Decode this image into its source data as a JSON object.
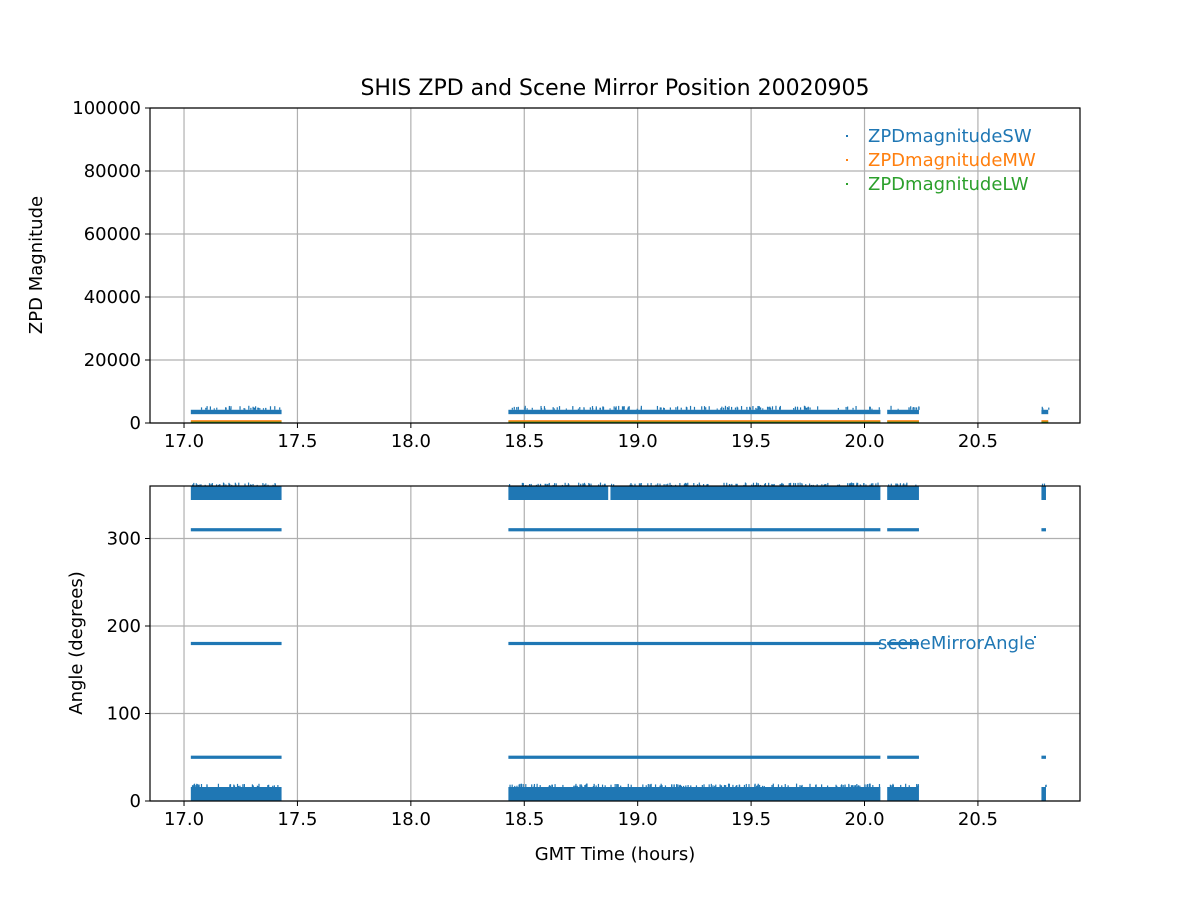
{
  "figure": {
    "title": "SHIS ZPD and Scene Mirror Position 20020905",
    "xlabel": "GMT Time (hours)"
  },
  "colors": {
    "sw": "#1f77b4",
    "mw": "#ff7f0e",
    "lw": "#2ca02c",
    "grid": "#b0b0b0",
    "axes": "#000000"
  },
  "chart_data": [
    {
      "type": "scatter",
      "ylabel": "ZPD Magnitude",
      "xlim": [
        16.85,
        20.95
      ],
      "ylim": [
        0,
        100000
      ],
      "xticks": [
        17.0,
        17.5,
        18.0,
        18.5,
        19.0,
        19.5,
        20.0,
        20.5
      ],
      "xtick_labels": [
        "17.0",
        "17.5",
        "18.0",
        "18.5",
        "19.0",
        "19.5",
        "20.0",
        "20.5"
      ],
      "yticks": [
        0,
        20000,
        40000,
        60000,
        80000,
        100000
      ],
      "ytick_labels": [
        "0",
        "20000",
        "40000",
        "60000",
        "80000",
        "100000"
      ],
      "grid": true,
      "legend_position": "top-right",
      "segments": [
        {
          "x": [
            17.03,
            17.43
          ]
        },
        {
          "x": [
            18.43,
            20.07
          ]
        },
        {
          "x": [
            20.1,
            20.24
          ]
        },
        {
          "x": [
            20.78,
            20.81
          ]
        }
      ],
      "series": [
        {
          "name": "ZPDmagnitudeSW",
          "color": "sw",
          "y_band": [
            2800,
            4200
          ],
          "typical": 3500
        },
        {
          "name": "ZPDmagnitudeMW",
          "color": "mw",
          "y_band": [
            500,
            900
          ],
          "typical": 700
        },
        {
          "name": "ZPDmagnitudeLW",
          "color": "lw",
          "y_band": [
            100,
            600
          ],
          "typical": 350
        }
      ]
    },
    {
      "type": "scatter",
      "ylabel": "Angle (degrees)",
      "xlim": [
        16.85,
        20.95
      ],
      "ylim": [
        0,
        360
      ],
      "xticks": [
        17.0,
        17.5,
        18.0,
        18.5,
        19.0,
        19.5,
        20.0,
        20.5
      ],
      "xtick_labels": [
        "17.0",
        "17.5",
        "18.0",
        "18.5",
        "19.0",
        "19.5",
        "20.0",
        "20.5"
      ],
      "yticks": [
        0,
        100,
        200,
        300
      ],
      "ytick_labels": [
        "0",
        "100",
        "200",
        "300"
      ],
      "grid": true,
      "legend_position": "right",
      "series": [
        {
          "name": "sceneMirrorAngle",
          "color": "sw",
          "levels": [
            {
              "y": [
                344,
                360
              ],
              "segments": [
                [
                  17.03,
                  17.43
                ],
                [
                  18.43,
                  18.87
                ],
                [
                  18.88,
                  20.07
                ],
                [
                  20.1,
                  20.24
                ],
                [
                  20.78,
                  20.8
                ]
              ]
            },
            {
              "y": [
                310,
                310
              ],
              "segments": [
                [
                  17.03,
                  17.43
                ],
                [
                  18.43,
                  20.07
                ],
                [
                  20.1,
                  20.24
                ],
                [
                  20.78,
                  20.8
                ]
              ]
            },
            {
              "y": [
                180,
                180
              ],
              "segments": [
                [
                  17.03,
                  17.43
                ],
                [
                  18.43,
                  20.07
                ],
                [
                  20.1,
                  20.24
                ]
              ]
            },
            {
              "y": [
                50,
                50
              ],
              "segments": [
                [
                  17.03,
                  17.43
                ],
                [
                  18.43,
                  20.07
                ],
                [
                  20.1,
                  20.24
                ],
                [
                  20.78,
                  20.8
                ]
              ]
            },
            {
              "y": [
                0,
                16
              ],
              "segments": [
                [
                  17.03,
                  17.43
                ],
                [
                  18.43,
                  20.07
                ],
                [
                  20.1,
                  20.24
                ],
                [
                  20.78,
                  20.8
                ]
              ]
            }
          ]
        }
      ]
    }
  ]
}
